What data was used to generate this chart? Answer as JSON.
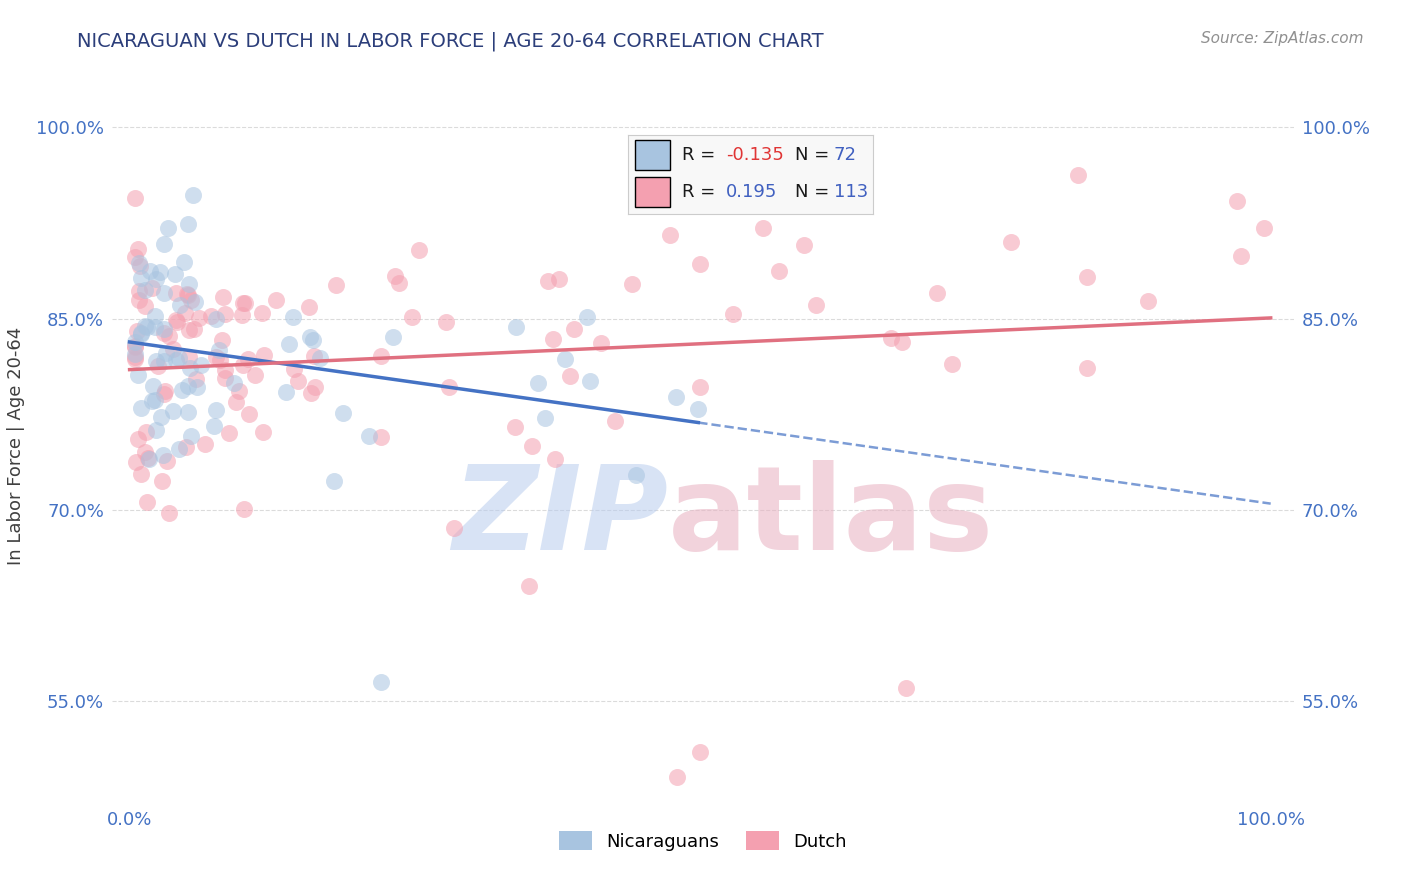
{
  "title": "NICARAGUAN VS DUTCH IN LABOR FORCE | AGE 20-64 CORRELATION CHART",
  "source_text": "Source: ZipAtlas.com",
  "ylabel": "In Labor Force | Age 20-64",
  "xlim": [
    0.0,
    1.0
  ],
  "ylim": [
    0.47,
    1.03
  ],
  "x_tick_labels": [
    "0.0%",
    "100.0%"
  ],
  "y_tick_labels": [
    "55.0%",
    "70.0%",
    "85.0%",
    "100.0%"
  ],
  "y_tick_positions": [
    0.55,
    0.7,
    0.85,
    1.0
  ],
  "nicaraguan_R": -0.135,
  "nicaraguan_N": 72,
  "dutch_R": 0.195,
  "dutch_N": 113,
  "nicaraguan_color": "#a8c4e0",
  "dutch_color": "#f4a0b0",
  "nicaraguan_line_color": "#4472c4",
  "dutch_line_color": "#e07080",
  "watermark_zip": "ZIP",
  "watermark_atlas": "atlas",
  "watermark_color_zip": "#c8d8ee",
  "watermark_color_atlas": "#d8a8b8",
  "legend_facecolor": "#f8f8f8",
  "title_color": "#2c3e7a",
  "source_color": "#909090",
  "tick_label_color": "#4472c4",
  "scatter_alpha": 0.55,
  "scatter_size": 150,
  "grid_color": "#cccccc",
  "background_color": "#ffffff",
  "nic_line_start_x": 0.0,
  "nic_line_end_x": 1.0,
  "nic_line_start_y": 0.838,
  "nic_line_end_y": 0.69,
  "dutch_line_start_x": 0.0,
  "dutch_line_end_x": 1.0,
  "dutch_line_start_y": 0.815,
  "dutch_line_end_y": 0.905
}
